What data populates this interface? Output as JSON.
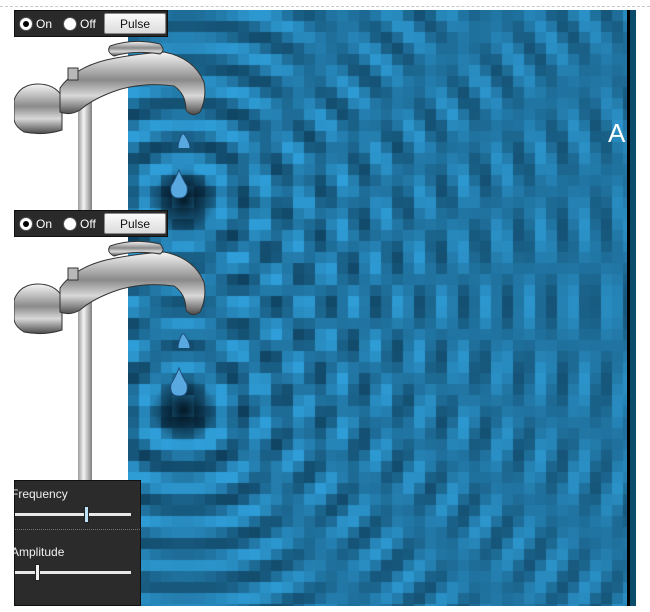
{
  "simulation": {
    "barrier_label": "A",
    "colors": {
      "water_dark": "#0e3f5c",
      "water_light": "#2f9ed8",
      "barrier": "#000000"
    }
  },
  "faucets": [
    {
      "on_label": "On",
      "off_label": "Off",
      "selected": "on",
      "pulse_label": "Pulse"
    },
    {
      "on_label": "On",
      "off_label": "Off",
      "selected": "on",
      "pulse_label": "Pulse"
    }
  ],
  "controls": {
    "frequency": {
      "label": "Frequency",
      "value_fraction": 0.62
    },
    "amplitude": {
      "label": "Amplitude",
      "value_fraction": 0.18
    }
  }
}
